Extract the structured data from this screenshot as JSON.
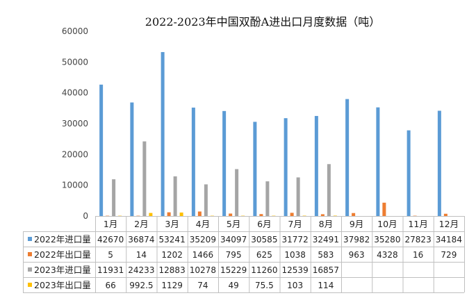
{
  "chart_data": {
    "type": "bar",
    "title": "2022-2023年中国双酚A进出口月度数据（吨）",
    "categories": [
      "1月",
      "2月",
      "3月",
      "4月",
      "5月",
      "6月",
      "7月",
      "8月",
      "9月",
      "10月",
      "11月",
      "12月"
    ],
    "yticks": [
      "0",
      "10000",
      "20000",
      "30000",
      "40000",
      "50000",
      "60000"
    ],
    "ylim": [
      0,
      60000
    ],
    "grid": false,
    "legend": "table-below",
    "series": [
      {
        "name": "2022年进口量",
        "color": "#5B9BD5",
        "values": [
          42670,
          36874,
          53241,
          35209,
          34097,
          30585,
          31772,
          32491,
          37982,
          35280,
          27823,
          34184
        ],
        "labels": [
          "42670",
          "36874",
          "53241",
          "35209",
          "34097",
          "30585",
          "31772",
          "32491",
          "37982",
          "35280",
          "27823",
          "34184"
        ]
      },
      {
        "name": "2022年出口量",
        "color": "#ED7D31",
        "values": [
          5,
          14,
          1202,
          1466,
          795,
          625,
          1038,
          583,
          963,
          4328,
          16,
          729
        ],
        "labels": [
          "5",
          "14",
          "1202",
          "1466",
          "795",
          "625",
          "1038",
          "583",
          "963",
          "4328",
          "16",
          "729"
        ]
      },
      {
        "name": "2023年进口量",
        "color": "#A5A5A5",
        "values": [
          11931,
          24233,
          12883,
          10278,
          15229,
          11260,
          12539,
          16857,
          null,
          null,
          null,
          null
        ],
        "labels": [
          "11931",
          "24233",
          "12883",
          "10278",
          "15229",
          "11260",
          "12539",
          "16857",
          "",
          "",
          "",
          ""
        ]
      },
      {
        "name": "2023年出口量",
        "color": "#FFC000",
        "values": [
          66,
          992.5,
          1129,
          74,
          49,
          75.5,
          103,
          114,
          null,
          null,
          null,
          null
        ],
        "labels": [
          "66",
          "992.5",
          "1129",
          "74",
          "49",
          "75.5",
          "103",
          "114",
          "",
          "",
          "",
          ""
        ]
      }
    ]
  }
}
